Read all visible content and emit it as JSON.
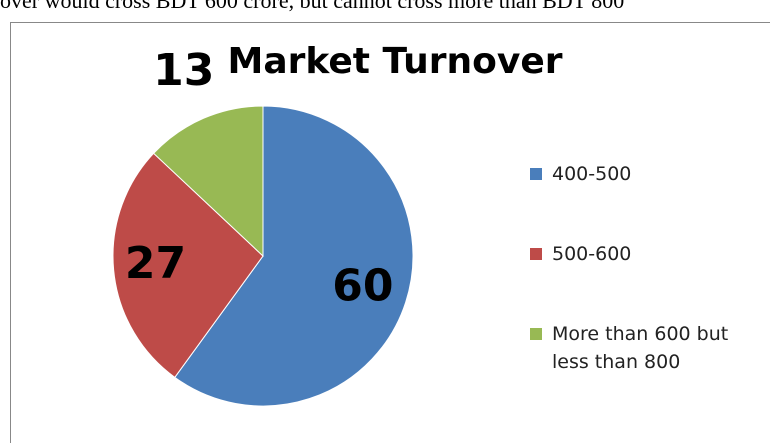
{
  "caption": "over would cross BDT 600 crore, but cannot cross more than BDT 800",
  "chart_data": {
    "type": "pie",
    "title": "Market Turnover",
    "categories": [
      "400-500",
      "500-600",
      "More than 600 but less than 800"
    ],
    "values": [
      60,
      27,
      13
    ],
    "colors": [
      "#4a7ebb",
      "#be4b48",
      "#98b954"
    ],
    "legend": "right"
  }
}
